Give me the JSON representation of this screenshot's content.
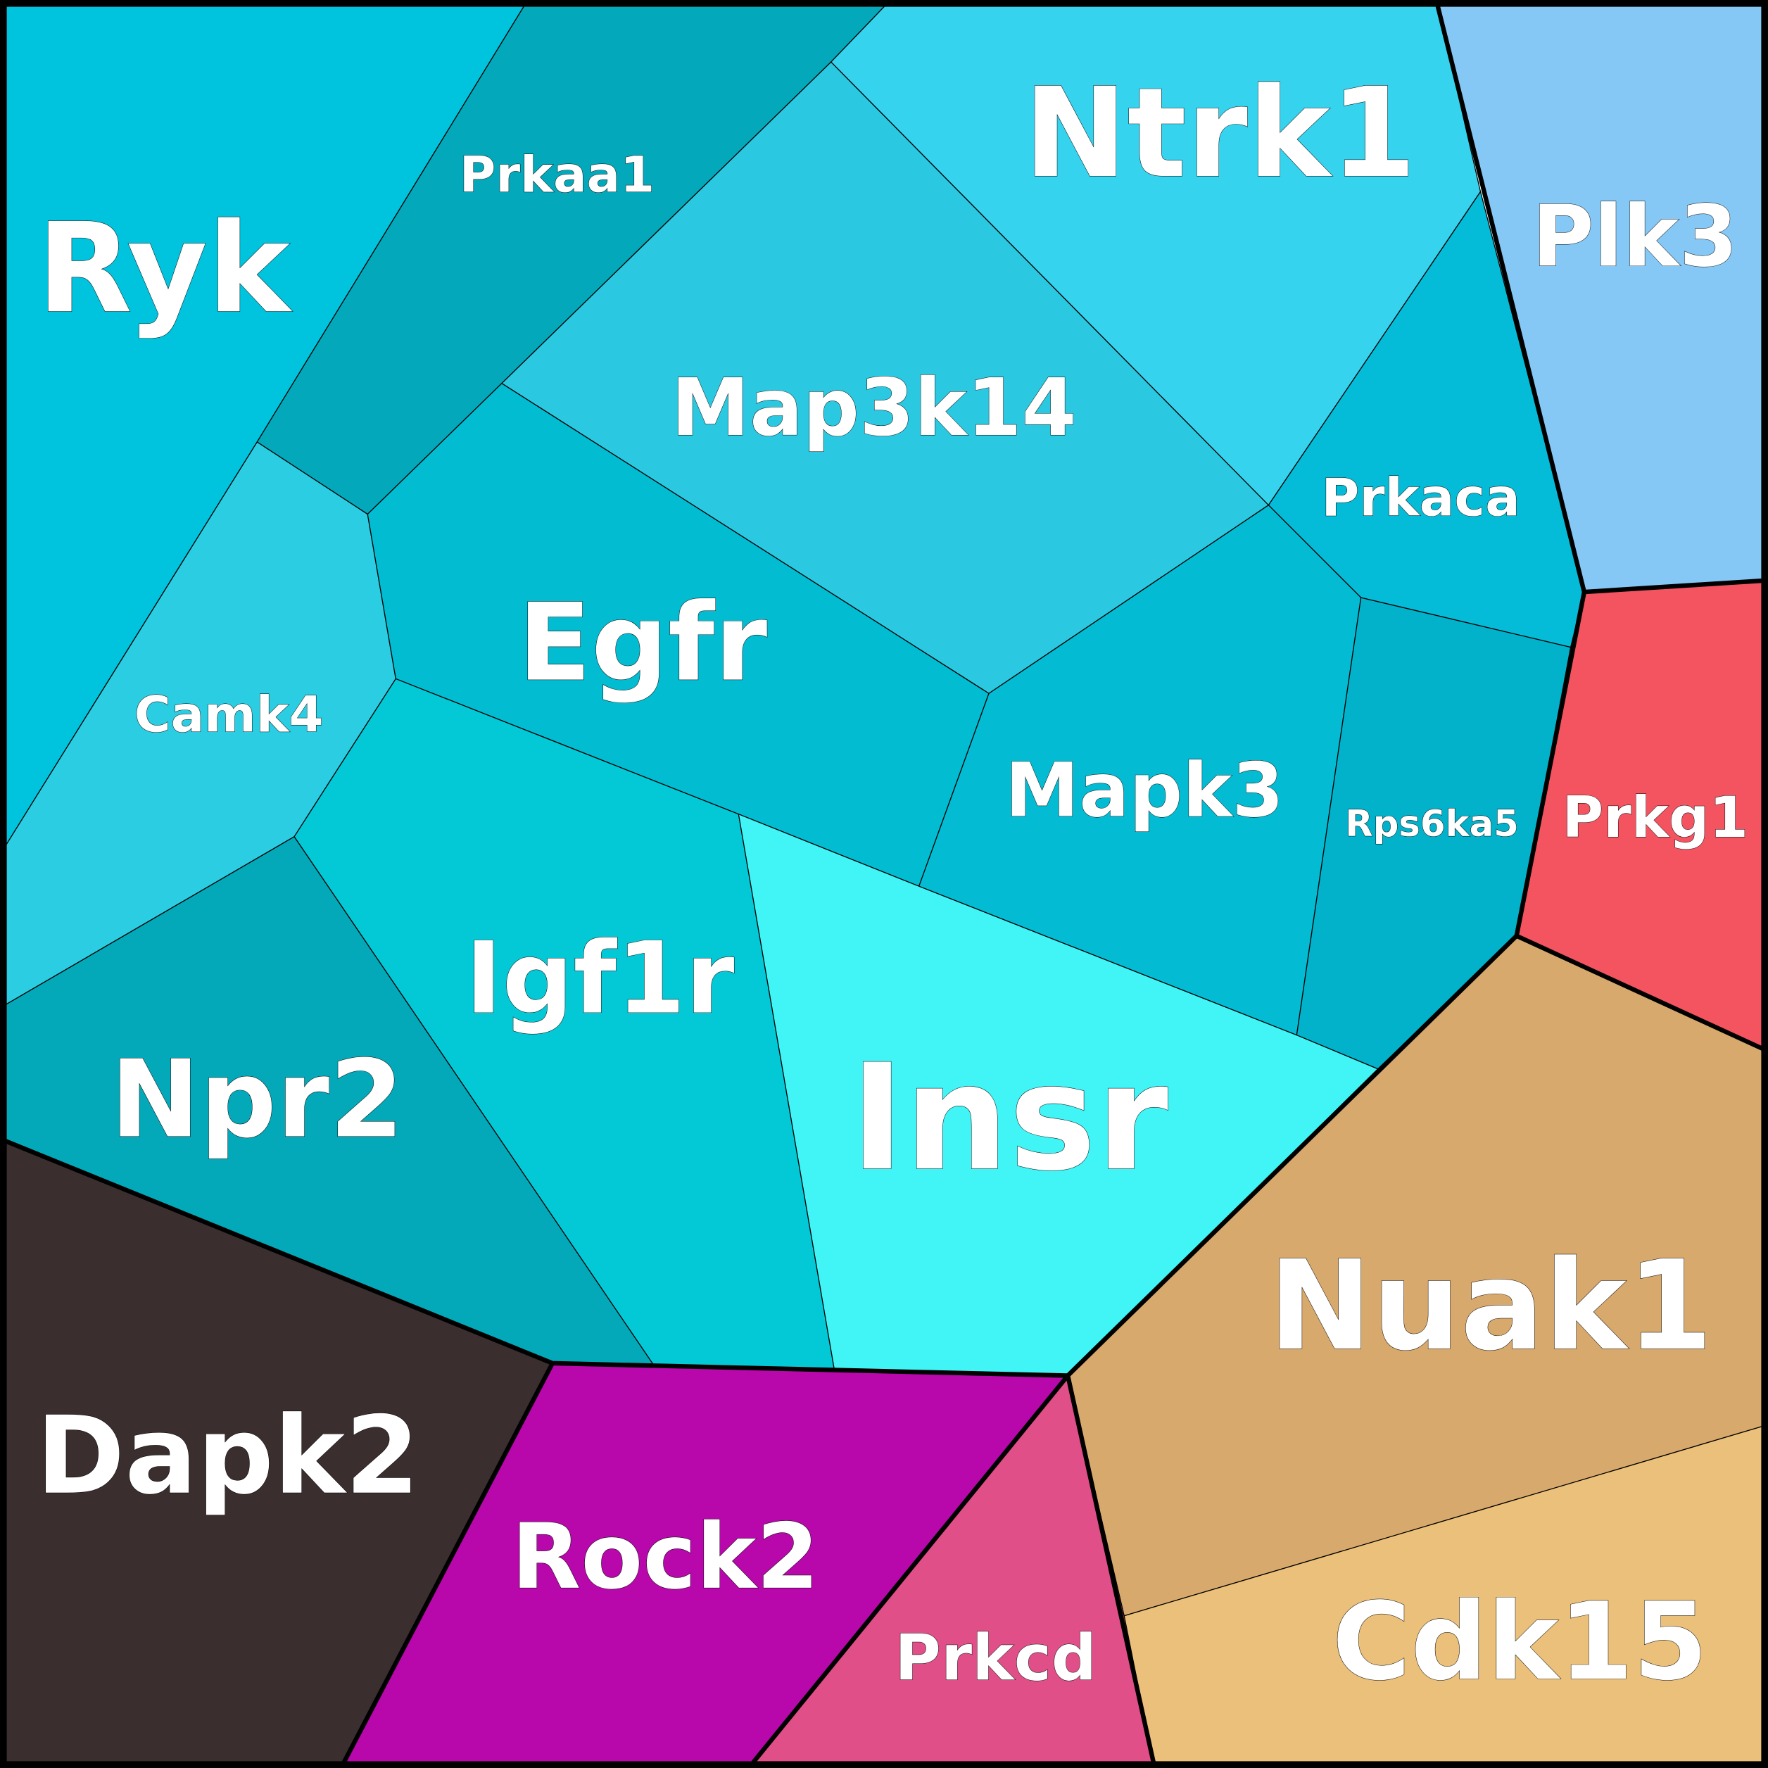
{
  "diagram": {
    "type": "voronoi-treemap",
    "label_color": "#ffffff",
    "border_color": "#000000",
    "cells": [
      {
        "id": "Ryk",
        "label": "Ryk",
        "color": "#00c4dd"
      },
      {
        "id": "Prkaa1",
        "label": "Prkaa1",
        "color": "#03a9bb"
      },
      {
        "id": "Ntrk1",
        "label": "Ntrk1",
        "color": "#36d3ee"
      },
      {
        "id": "Plk3",
        "label": "Plk3",
        "color": "#85c8f5"
      },
      {
        "id": "Map3k14",
        "label": "Map3k14",
        "color": "#2ac9e1"
      },
      {
        "id": "Prkaca",
        "label": "Prkaca",
        "color": "#04bcd8"
      },
      {
        "id": "Camk4",
        "label": "Camk4",
        "color": "#2bcde2"
      },
      {
        "id": "Egfr",
        "label": "Egfr",
        "color": "#02bcd2"
      },
      {
        "id": "Mapk3",
        "label": "Mapk3",
        "color": "#03bcd3"
      },
      {
        "id": "Rps6ka5",
        "label": "Rps6ka5",
        "color": "#02b1ca"
      },
      {
        "id": "Prkg1",
        "label": "Prkg1",
        "color": "#f35460"
      },
      {
        "id": "Npr2",
        "label": "Npr2",
        "color": "#03a9b9"
      },
      {
        "id": "Igf1r",
        "label": "Igf1r",
        "color": "#03c9d7"
      },
      {
        "id": "Insr",
        "label": "Insr",
        "color": "#41f4f6"
      },
      {
        "id": "Dapk2",
        "label": "Dapk2",
        "color": "#3a2e2f"
      },
      {
        "id": "Rock2",
        "label": "Rock2",
        "color": "#b807ab"
      },
      {
        "id": "Prkcd",
        "label": "Prkcd",
        "color": "#e04f88"
      },
      {
        "id": "Nuak1",
        "label": "Nuak1",
        "color": "#d8a96d"
      },
      {
        "id": "Cdk15",
        "label": "Cdk15",
        "color": "#ebc07a"
      }
    ]
  }
}
